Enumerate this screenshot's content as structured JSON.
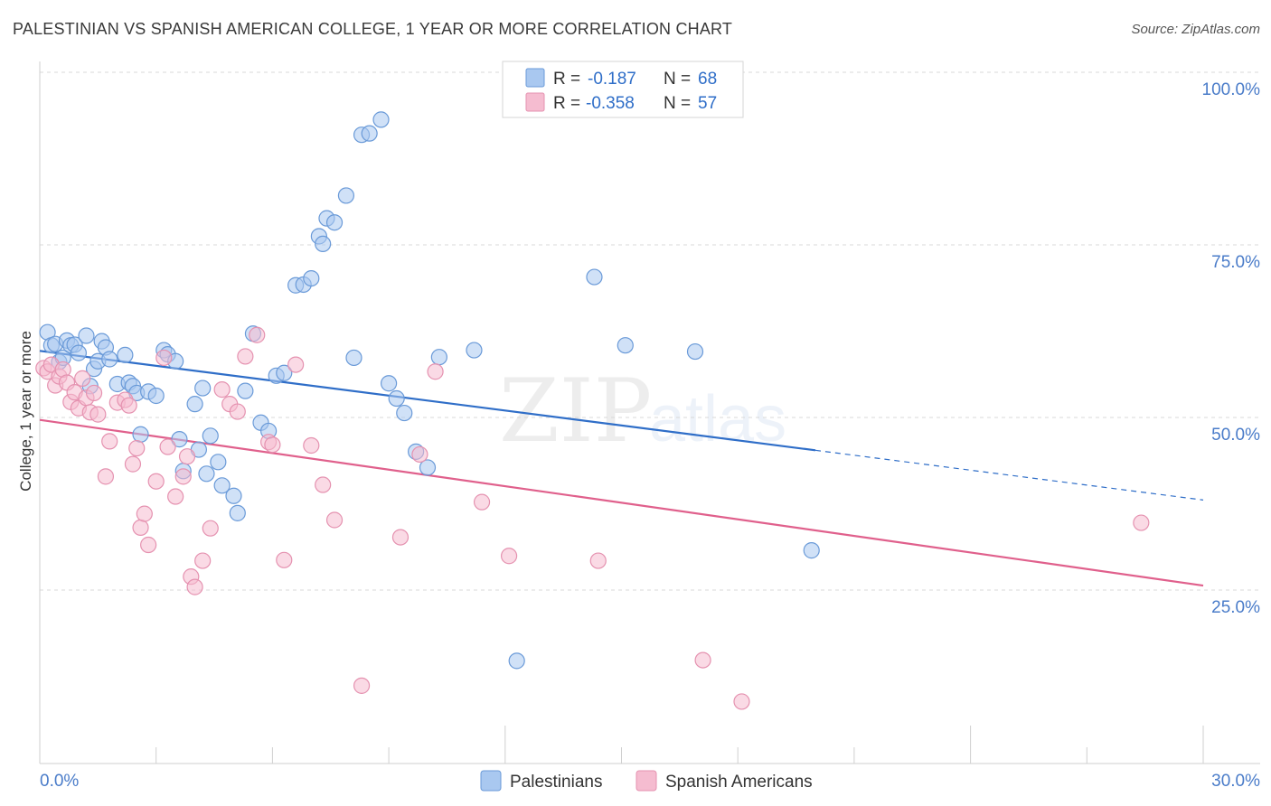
{
  "title": "PALESTINIAN VS SPANISH AMERICAN COLLEGE, 1 YEAR OR MORE CORRELATION CHART",
  "source": "Source: ZipAtlas.com",
  "watermark": {
    "zip": "ZIP",
    "atlas": "atlas"
  },
  "colors": {
    "blue_fill": "#a9c8f0",
    "blue_stroke": "#6a9ad8",
    "blue_line": "#2f6ec8",
    "pink_fill": "#f5bcd0",
    "pink_stroke": "#e592b0",
    "pink_line": "#e0608c",
    "grid": "#d8d8d8",
    "axis_text": "#4a7cc9"
  },
  "legend": {
    "rows": [
      {
        "r_label": "R =",
        "r_value": "-0.187",
        "n_label": "N =",
        "n_value": "68"
      },
      {
        "r_label": "R =",
        "r_value": "-0.358",
        "n_label": "N =",
        "n_value": "57"
      }
    ]
  },
  "bottom_legend": [
    "Palestinians",
    "Spanish Americans"
  ],
  "chart_data": {
    "type": "scatter",
    "title": "PALESTINIAN VS SPANISH AMERICAN COLLEGE, 1 YEAR OR MORE CORRELATION CHART",
    "xlabel": "",
    "ylabel": "College, 1 year or more",
    "xlim": [
      0,
      30
    ],
    "ylim": [
      0,
      100
    ],
    "x_ticks": [
      "0.0%",
      "30.0%"
    ],
    "y_ticks": [
      "25.0%",
      "50.0%",
      "75.0%",
      "100.0%"
    ],
    "grid": true,
    "legend_position": "top-center",
    "series": [
      {
        "name": "Palestinians",
        "stats": {
          "R": -0.187,
          "N": 68
        },
        "trend": {
          "x0": 0.0,
          "y0": 62.0,
          "x1": 20.0,
          "y1": 47.6,
          "dashed_to_x": 30.0,
          "dashed_to_y": 40.4
        },
        "points": [
          [
            0.2,
            64.7
          ],
          [
            0.3,
            62.8
          ],
          [
            0.4,
            63.0
          ],
          [
            0.5,
            60.4
          ],
          [
            0.6,
            61.0
          ],
          [
            0.7,
            63.5
          ],
          [
            0.8,
            62.8
          ],
          [
            0.9,
            62.9
          ],
          [
            1.0,
            61.7
          ],
          [
            1.2,
            64.2
          ],
          [
            1.3,
            56.9
          ],
          [
            1.4,
            59.4
          ],
          [
            1.5,
            60.5
          ],
          [
            1.6,
            63.4
          ],
          [
            1.7,
            62.5
          ],
          [
            1.8,
            60.8
          ],
          [
            2.0,
            57.2
          ],
          [
            2.2,
            61.4
          ],
          [
            2.3,
            57.4
          ],
          [
            2.4,
            56.9
          ],
          [
            2.5,
            55.9
          ],
          [
            2.6,
            49.9
          ],
          [
            2.8,
            56.1
          ],
          [
            3.0,
            55.5
          ],
          [
            3.2,
            62.1
          ],
          [
            3.3,
            61.5
          ],
          [
            3.5,
            60.5
          ],
          [
            3.6,
            49.2
          ],
          [
            3.7,
            44.6
          ],
          [
            4.0,
            54.3
          ],
          [
            4.1,
            47.7
          ],
          [
            4.2,
            56.6
          ],
          [
            4.3,
            44.2
          ],
          [
            4.4,
            49.7
          ],
          [
            4.6,
            45.9
          ],
          [
            4.7,
            42.5
          ],
          [
            5.0,
            41.0
          ],
          [
            5.1,
            38.5
          ],
          [
            5.3,
            56.2
          ],
          [
            5.5,
            64.5
          ],
          [
            5.7,
            51.6
          ],
          [
            5.9,
            50.4
          ],
          [
            6.1,
            58.4
          ],
          [
            6.3,
            58.8
          ],
          [
            6.6,
            71.5
          ],
          [
            6.8,
            71.6
          ],
          [
            7.0,
            72.5
          ],
          [
            7.2,
            78.6
          ],
          [
            7.3,
            77.5
          ],
          [
            7.4,
            81.2
          ],
          [
            7.6,
            80.6
          ],
          [
            7.9,
            84.5
          ],
          [
            8.1,
            61.0
          ],
          [
            8.3,
            93.3
          ],
          [
            8.5,
            93.5
          ],
          [
            8.8,
            95.5
          ],
          [
            9.0,
            57.3
          ],
          [
            9.2,
            55.1
          ],
          [
            9.4,
            53.0
          ],
          [
            9.7,
            47.4
          ],
          [
            10.0,
            45.1
          ],
          [
            10.3,
            61.1
          ],
          [
            11.2,
            62.1
          ],
          [
            12.3,
            17.1
          ],
          [
            14.3,
            72.7
          ],
          [
            15.1,
            62.8
          ],
          [
            16.9,
            61.9
          ],
          [
            19.9,
            33.1
          ]
        ]
      },
      {
        "name": "Spanish Americans",
        "stats": {
          "R": -0.358,
          "N": 57
        },
        "trend": {
          "x0": 0.0,
          "y0": 52.0,
          "x1": 30.0,
          "y1": 28.0
        },
        "points": [
          [
            0.1,
            59.5
          ],
          [
            0.2,
            59.0
          ],
          [
            0.3,
            60.0
          ],
          [
            0.4,
            57.0
          ],
          [
            0.5,
            58.3
          ],
          [
            0.6,
            59.3
          ],
          [
            0.7,
            57.4
          ],
          [
            0.8,
            54.6
          ],
          [
            0.9,
            56.0
          ],
          [
            1.0,
            53.7
          ],
          [
            1.1,
            58.0
          ],
          [
            1.2,
            55.2
          ],
          [
            1.3,
            53.1
          ],
          [
            1.4,
            55.9
          ],
          [
            1.5,
            52.8
          ],
          [
            1.7,
            43.8
          ],
          [
            1.8,
            48.9
          ],
          [
            2.0,
            54.5
          ],
          [
            2.2,
            54.9
          ],
          [
            2.3,
            54.1
          ],
          [
            2.4,
            45.6
          ],
          [
            2.5,
            47.9
          ],
          [
            2.6,
            36.4
          ],
          [
            2.7,
            38.4
          ],
          [
            2.8,
            33.9
          ],
          [
            3.0,
            43.1
          ],
          [
            3.2,
            61.0
          ],
          [
            3.3,
            48.1
          ],
          [
            3.5,
            40.9
          ],
          [
            3.7,
            43.8
          ],
          [
            3.8,
            46.7
          ],
          [
            3.9,
            29.3
          ],
          [
            4.0,
            27.8
          ],
          [
            4.2,
            31.6
          ],
          [
            4.4,
            36.3
          ],
          [
            4.7,
            56.4
          ],
          [
            4.9,
            54.3
          ],
          [
            5.1,
            53.2
          ],
          [
            5.3,
            61.2
          ],
          [
            5.6,
            64.3
          ],
          [
            5.9,
            48.8
          ],
          [
            6.0,
            48.4
          ],
          [
            6.3,
            31.7
          ],
          [
            6.6,
            60.0
          ],
          [
            7.0,
            48.3
          ],
          [
            7.3,
            42.6
          ],
          [
            7.6,
            37.5
          ],
          [
            8.3,
            13.5
          ],
          [
            9.3,
            35.0
          ],
          [
            9.8,
            47.0
          ],
          [
            10.2,
            59.0
          ],
          [
            11.4,
            40.1
          ],
          [
            12.1,
            32.3
          ],
          [
            14.4,
            31.6
          ],
          [
            17.1,
            17.2
          ],
          [
            18.1,
            11.2
          ],
          [
            28.4,
            37.1
          ]
        ]
      }
    ]
  }
}
